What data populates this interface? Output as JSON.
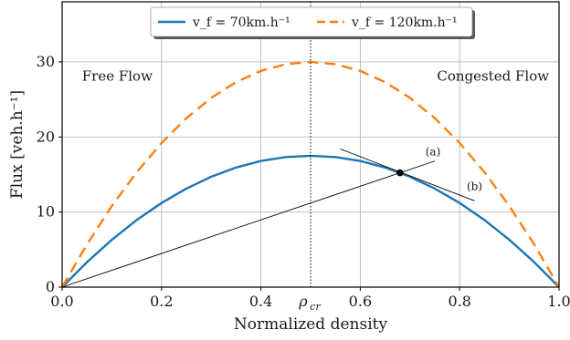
{
  "chart_data": {
    "type": "line",
    "xlabel": "Normalized density",
    "ylabel": "Flux [veh.h⁻¹]",
    "xlim": [
      0.0,
      1.0
    ],
    "ylim": [
      0,
      38
    ],
    "x_ticks": [
      0.0,
      0.2,
      0.4,
      0.6,
      0.8,
      1.0
    ],
    "x_tick_labels": [
      "0.0",
      "0.2",
      "0.4",
      "0.6",
      "0.8",
      "1.0"
    ],
    "y_ticks": [
      0,
      10,
      20,
      30
    ],
    "y_tick_labels": [
      "0",
      "10",
      "20",
      "30"
    ],
    "grid": true,
    "legend_position": "top-center",
    "series": [
      {
        "name": "v_f = 70km.h⁻¹",
        "legend_label": "v_f = 70km.h⁻¹",
        "color": "#1f77b4",
        "style": "solid",
        "x": [
          0.0,
          0.05,
          0.1,
          0.15,
          0.2,
          0.25,
          0.3,
          0.35,
          0.4,
          0.45,
          0.5,
          0.55,
          0.6,
          0.65,
          0.7,
          0.75,
          0.8,
          0.85,
          0.9,
          0.95,
          1.0
        ],
        "y": [
          0.0,
          3.33,
          6.3,
          8.93,
          11.2,
          13.13,
          14.7,
          15.93,
          16.8,
          17.33,
          17.5,
          17.33,
          16.8,
          15.93,
          14.7,
          13.13,
          11.2,
          8.93,
          6.3,
          3.33,
          0.0
        ]
      },
      {
        "name": "v_f = 120km.h⁻¹",
        "legend_label": "v_f = 120km.h⁻¹",
        "color": "#ff7f0e",
        "style": "dashed",
        "x": [
          0.0,
          0.05,
          0.1,
          0.15,
          0.2,
          0.25,
          0.3,
          0.35,
          0.4,
          0.45,
          0.5,
          0.55,
          0.6,
          0.65,
          0.7,
          0.75,
          0.8,
          0.85,
          0.9,
          0.95,
          1.0
        ],
        "y": [
          0.0,
          5.7,
          10.8,
          15.3,
          19.2,
          22.5,
          25.2,
          27.3,
          28.8,
          29.7,
          30.0,
          29.7,
          28.8,
          27.3,
          25.2,
          22.5,
          19.2,
          15.3,
          10.8,
          5.7,
          0.0
        ]
      }
    ],
    "critical_density": {
      "x": 0.5,
      "label": "ρ_cr"
    },
    "marked_point": {
      "x": 0.68,
      "y": 15.23
    },
    "line_a": {
      "label": "(a)",
      "x": [
        0.0,
        0.75
      ],
      "y": [
        0.0,
        16.8
      ]
    },
    "line_b": {
      "label": "(b)",
      "x": [
        0.56,
        0.83
      ],
      "y": [
        18.4,
        11.5
      ]
    },
    "annotations": [
      {
        "text": "Free Flow",
        "x": 0.04,
        "y": 27.5
      },
      {
        "text": "Congested Flow",
        "x": 0.98,
        "y": 27.5
      }
    ]
  }
}
